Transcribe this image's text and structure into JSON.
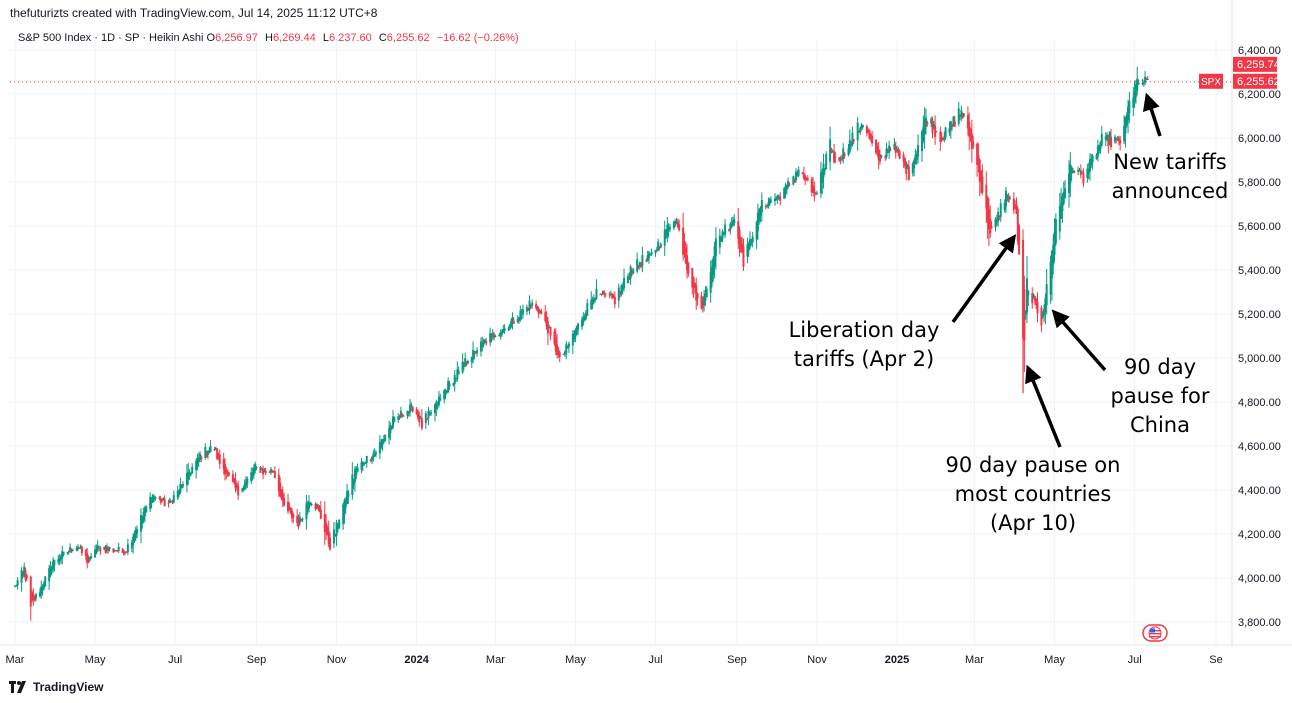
{
  "header": {
    "credit": "thefuturizts created with TradingView.com, Jul 14, 2025 11:12 UTC+8",
    "symbol_line": "S&P 500 Index · 1D · SP · Heikin Ashi",
    "ohlc": {
      "O_label": "O",
      "O": "6,256.97",
      "H_label": "H",
      "H": "6,269.44",
      "L_label": "L",
      "L": "6,237.60",
      "C_label": "C",
      "C": "6,255.62",
      "change": "−16.62 (−0.26%)"
    }
  },
  "price_tags": {
    "high_tag": "6,259.74",
    "symbol": "SPX",
    "last": "6,255.62"
  },
  "footer": {
    "brand": "TradingView"
  },
  "colors": {
    "up": "#089981",
    "down": "#f23645",
    "grid": "#f0f3fa",
    "axis_text": "#131722",
    "tag": "#f23645"
  },
  "icons": {
    "brand_logo": "tradingview-logo-icon",
    "flag": "us-flag-icon"
  },
  "annotations": [
    {
      "id": "new-tariffs",
      "lines": [
        "New tariffs",
        "announced"
      ]
    },
    {
      "id": "liberation-day",
      "lines": [
        "Liberation day",
        "tariffs (Apr 2)"
      ]
    },
    {
      "id": "pause-china",
      "lines": [
        "90 day",
        "pause for",
        "China"
      ]
    },
    {
      "id": "pause-most",
      "lines": [
        "90 day pause on",
        "most countries",
        "(Apr 10)"
      ]
    }
  ],
  "chart_data": {
    "type": "candlestick",
    "title": "S&P 500 Index · 1D · SP · Heikin Ashi",
    "xlabel": "",
    "ylabel": "",
    "ylim": [
      3700,
      6450
    ],
    "yticks": [
      "6,400.00",
      "6,200.00",
      "6,000.00",
      "5,800.00",
      "5,600.00",
      "5,400.00",
      "5,200.00",
      "5,000.00",
      "4,800.00",
      "4,600.00",
      "4,400.00",
      "4,200.00",
      "4,000.00",
      "3,800.00"
    ],
    "ytick_values": [
      6400,
      6200,
      6000,
      5800,
      5600,
      5400,
      5200,
      5000,
      4800,
      4600,
      4400,
      4200,
      4000,
      3800
    ],
    "x_start": "2023-03-01",
    "x_end": "2025-09-01",
    "xticks": [
      {
        "label": "Mar",
        "date": "2023-03-01",
        "bold": false
      },
      {
        "label": "May",
        "date": "2023-05-01",
        "bold": false
      },
      {
        "label": "Jul",
        "date": "2023-07-01",
        "bold": false
      },
      {
        "label": "Sep",
        "date": "2023-09-01",
        "bold": false
      },
      {
        "label": "Nov",
        "date": "2023-11-01",
        "bold": false
      },
      {
        "label": "2024",
        "date": "2024-01-01",
        "bold": true
      },
      {
        "label": "Mar",
        "date": "2024-03-01",
        "bold": false
      },
      {
        "label": "May",
        "date": "2024-05-01",
        "bold": false
      },
      {
        "label": "Jul",
        "date": "2024-07-01",
        "bold": false
      },
      {
        "label": "Sep",
        "date": "2024-09-01",
        "bold": false
      },
      {
        "label": "Nov",
        "date": "2024-11-01",
        "bold": false
      },
      {
        "label": "2025",
        "date": "2025-01-01",
        "bold": true
      },
      {
        "label": "Mar",
        "date": "2025-03-01",
        "bold": false
      },
      {
        "label": "May",
        "date": "2025-05-01",
        "bold": false
      },
      {
        "label": "Jul",
        "date": "2025-07-01",
        "bold": false
      },
      {
        "label": "Se",
        "date": "2025-09-01",
        "bold": false
      }
    ],
    "last_price": 6255.62,
    "high_price": 6259.74,
    "series_anchors": [
      [
        "2023-03-01",
        3960
      ],
      [
        "2023-03-08",
        4050
      ],
      [
        "2023-03-13",
        3860
      ],
      [
        "2023-03-30",
        4080
      ],
      [
        "2023-04-06",
        4110
      ],
      [
        "2023-04-18",
        4150
      ],
      [
        "2023-04-26",
        4060
      ],
      [
        "2023-05-01",
        4140
      ],
      [
        "2023-05-24",
        4120
      ],
      [
        "2023-06-01",
        4230
      ],
      [
        "2023-06-13",
        4380
      ],
      [
        "2023-06-26",
        4330
      ],
      [
        "2023-07-05",
        4420
      ],
      [
        "2023-07-20",
        4560
      ],
      [
        "2023-07-31",
        4600
      ],
      [
        "2023-08-03",
        4530
      ],
      [
        "2023-08-18",
        4380
      ],
      [
        "2023-08-31",
        4510
      ],
      [
        "2023-09-07",
        4480
      ],
      [
        "2023-09-14",
        4490
      ],
      [
        "2023-09-21",
        4320
      ],
      [
        "2023-10-03",
        4240
      ],
      [
        "2023-10-11",
        4370
      ],
      [
        "2023-10-18",
        4310
      ],
      [
        "2023-10-27",
        4130
      ],
      [
        "2023-11-06",
        4340
      ],
      [
        "2023-11-15",
        4500
      ],
      [
        "2023-12-01",
        4580
      ],
      [
        "2023-12-14",
        4720
      ],
      [
        "2023-12-29",
        4780
      ],
      [
        "2024-01-05",
        4690
      ],
      [
        "2024-01-24",
        4870
      ],
      [
        "2024-02-09",
        5000
      ],
      [
        "2024-02-22",
        5080
      ],
      [
        "2024-03-08",
        5140
      ],
      [
        "2024-03-28",
        5250
      ],
      [
        "2024-04-05",
        5200
      ],
      [
        "2024-04-19",
        4980
      ],
      [
        "2024-04-26",
        5070
      ],
      [
        "2024-05-15",
        5300
      ],
      [
        "2024-05-31",
        5260
      ],
      [
        "2024-06-12",
        5410
      ],
      [
        "2024-06-28",
        5470
      ],
      [
        "2024-07-16",
        5650
      ],
      [
        "2024-07-25",
        5400
      ],
      [
        "2024-08-05",
        5200
      ],
      [
        "2024-08-16",
        5550
      ],
      [
        "2024-08-30",
        5640
      ],
      [
        "2024-09-06",
        5430
      ],
      [
        "2024-09-19",
        5700
      ],
      [
        "2024-10-04",
        5740
      ],
      [
        "2024-10-18",
        5860
      ],
      [
        "2024-10-31",
        5720
      ],
      [
        "2024-11-11",
        6000
      ],
      [
        "2024-11-15",
        5880
      ],
      [
        "2024-12-06",
        6080
      ],
      [
        "2024-12-18",
        5880
      ],
      [
        "2024-12-27",
        5980
      ],
      [
        "2025-01-10",
        5830
      ],
      [
        "2025-01-23",
        6110
      ],
      [
        "2025-02-03",
        5990
      ],
      [
        "2025-02-19",
        6130
      ],
      [
        "2025-03-04",
        5850
      ],
      [
        "2025-03-13",
        5540
      ],
      [
        "2025-03-25",
        5760
      ],
      [
        "2025-04-02",
        5650
      ],
      [
        "2025-04-08",
        4950
      ],
      [
        "2025-04-10",
        5350
      ],
      [
        "2025-04-21",
        5150
      ],
      [
        "2025-05-02",
        5650
      ],
      [
        "2025-05-13",
        5880
      ],
      [
        "2025-05-23",
        5820
      ],
      [
        "2025-06-06",
        6000
      ],
      [
        "2025-06-20",
        5980
      ],
      [
        "2025-06-27",
        6170
      ],
      [
        "2025-07-03",
        6260
      ],
      [
        "2025-07-11",
        6256
      ]
    ]
  }
}
